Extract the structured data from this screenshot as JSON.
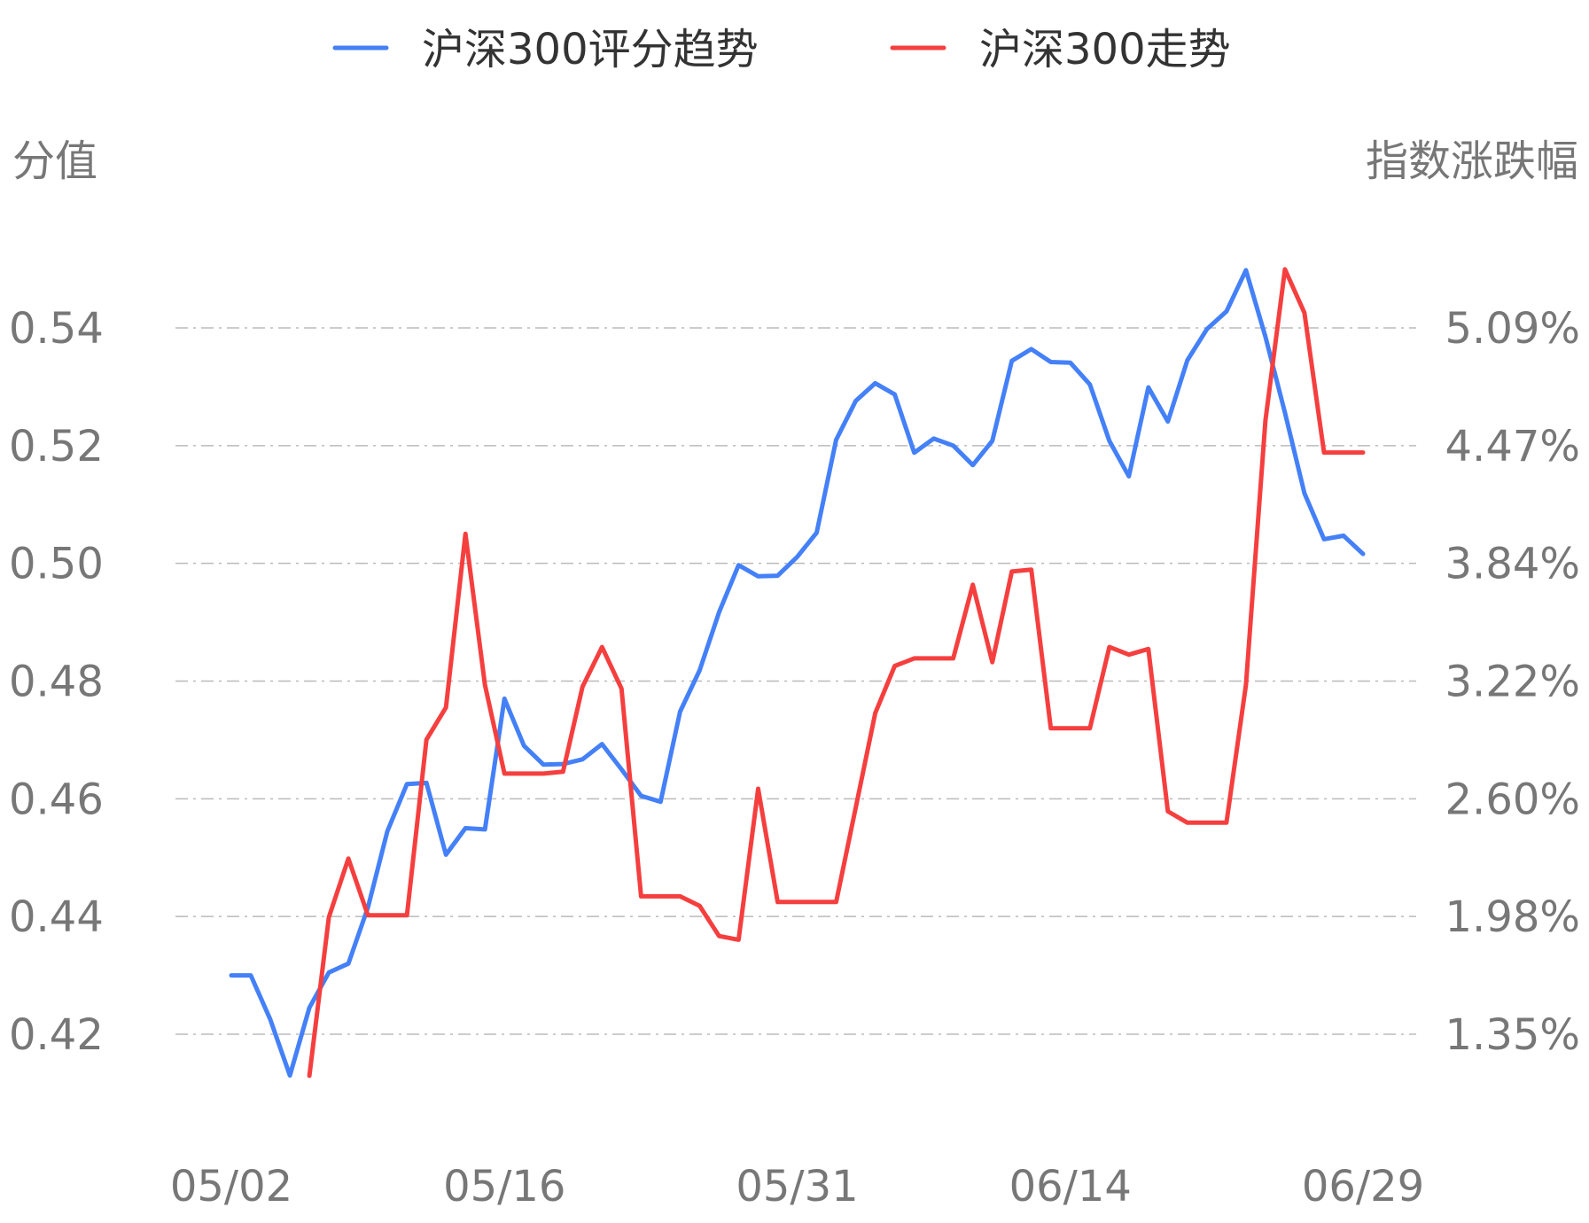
{
  "chart_data": {
    "type": "line",
    "legend_position": "top-center",
    "grid": true,
    "axes": {
      "left_title": "分值",
      "right_title": "指数涨跌幅",
      "left_ticks": [
        "0.54",
        "0.52",
        "0.50",
        "0.48",
        "0.46",
        "0.44",
        "0.42"
      ],
      "right_ticks": [
        "5.09%",
        "4.47%",
        "3.84%",
        "3.22%",
        "2.60%",
        "1.98%",
        "1.35%"
      ],
      "left_ylim": [
        0.42,
        0.54
      ],
      "right_ylim": [
        1.35,
        5.09
      ],
      "x_ticks": [
        {
          "label": "05/02",
          "x": "2023-05-02"
        },
        {
          "label": "05/16",
          "x": "2023-05-16"
        },
        {
          "label": "05/31",
          "x": "2023-05-31"
        },
        {
          "label": "06/14",
          "x": "2023-06-14"
        },
        {
          "label": "06/29",
          "x": "2023-06-29"
        }
      ],
      "xlim": [
        "2023-05-02",
        "2023-06-29"
      ]
    },
    "series": [
      {
        "name": "沪深300评分趋势",
        "color": "#4480f7",
        "axis": "left",
        "points": [
          [
            "2023-05-02",
            0.43
          ],
          [
            "2023-05-03",
            0.43
          ],
          [
            "2023-05-04",
            0.4225
          ],
          [
            "2023-05-05",
            0.413
          ],
          [
            "2023-05-06",
            0.4245
          ],
          [
            "2023-05-07",
            0.4305
          ],
          [
            "2023-05-08",
            0.432
          ],
          [
            "2023-05-09",
            0.4415
          ],
          [
            "2023-05-10",
            0.4545
          ],
          [
            "2023-05-11",
            0.4625
          ],
          [
            "2023-05-12",
            0.4627
          ],
          [
            "2023-05-13",
            0.4505
          ],
          [
            "2023-05-14",
            0.455
          ],
          [
            "2023-05-15",
            0.4548
          ],
          [
            "2023-05-16",
            0.477
          ],
          [
            "2023-05-17",
            0.469
          ],
          [
            "2023-05-18",
            0.4658
          ],
          [
            "2023-05-19",
            0.4659
          ],
          [
            "2023-05-20",
            0.4667
          ],
          [
            "2023-05-21",
            0.4693
          ],
          [
            "2023-05-22",
            0.465
          ],
          [
            "2023-05-23",
            0.4605
          ],
          [
            "2023-05-24",
            0.4595
          ],
          [
            "2023-05-25",
            0.4748
          ],
          [
            "2023-05-26",
            0.4818
          ],
          [
            "2023-05-27",
            0.4917
          ],
          [
            "2023-05-28",
            0.4997
          ],
          [
            "2023-05-29",
            0.4978
          ],
          [
            "2023-05-30",
            0.4979
          ],
          [
            "2023-05-31",
            0.5011
          ],
          [
            "2023-06-01",
            0.5052
          ],
          [
            "2023-06-02",
            0.521
          ],
          [
            "2023-06-03",
            0.5276
          ],
          [
            "2023-06-04",
            0.5306
          ],
          [
            "2023-06-05",
            0.5287
          ],
          [
            "2023-06-06",
            0.5188
          ],
          [
            "2023-06-07",
            0.5212
          ],
          [
            "2023-06-08",
            0.52
          ],
          [
            "2023-06-09",
            0.5167
          ],
          [
            "2023-06-10",
            0.5208
          ],
          [
            "2023-06-11",
            0.5344
          ],
          [
            "2023-06-12",
            0.5364
          ],
          [
            "2023-06-13",
            0.5342
          ],
          [
            "2023-06-14",
            0.5341
          ],
          [
            "2023-06-15",
            0.5304
          ],
          [
            "2023-06-16",
            0.5208
          ],
          [
            "2023-06-17",
            0.5148
          ],
          [
            "2023-06-18",
            0.5299
          ],
          [
            "2023-06-19",
            0.5241
          ],
          [
            "2023-06-20",
            0.5345
          ],
          [
            "2023-06-21",
            0.5398
          ],
          [
            "2023-06-22",
            0.5428
          ],
          [
            "2023-06-23",
            0.5498
          ],
          [
            "2023-06-24",
            0.5385
          ],
          [
            "2023-06-25",
            0.5256
          ],
          [
            "2023-06-26",
            0.5119
          ],
          [
            "2023-06-27",
            0.5041
          ],
          [
            "2023-06-28",
            0.5047
          ],
          [
            "2023-06-29",
            0.5016
          ]
        ]
      },
      {
        "name": "沪深300走势",
        "color": "#f53f3f",
        "axis": "right",
        "points": [
          [
            "2023-05-06",
            1.13
          ],
          [
            "2023-05-07",
            1.97
          ],
          [
            "2023-05-08",
            2.28
          ],
          [
            "2023-05-09",
            1.98
          ],
          [
            "2023-05-10",
            1.98
          ],
          [
            "2023-05-11",
            1.98
          ],
          [
            "2023-05-12",
            2.91
          ],
          [
            "2023-05-13",
            3.08
          ],
          [
            "2023-05-14",
            4.0
          ],
          [
            "2023-05-15",
            3.2
          ],
          [
            "2023-05-16",
            2.73
          ],
          [
            "2023-05-17",
            2.73
          ],
          [
            "2023-05-18",
            2.73
          ],
          [
            "2023-05-19",
            2.74
          ],
          [
            "2023-05-20",
            3.19
          ],
          [
            "2023-05-21",
            3.4
          ],
          [
            "2023-05-22",
            3.18
          ],
          [
            "2023-05-23",
            2.08
          ],
          [
            "2023-05-24",
            2.08
          ],
          [
            "2023-05-25",
            2.08
          ],
          [
            "2023-05-26",
            2.03
          ],
          [
            "2023-05-27",
            1.87
          ],
          [
            "2023-05-28",
            1.85
          ],
          [
            "2023-05-29",
            2.65
          ],
          [
            "2023-05-30",
            2.05
          ],
          [
            "2023-05-31",
            2.05
          ],
          [
            "2023-06-01",
            2.05
          ],
          [
            "2023-06-02",
            2.05
          ],
          [
            "2023-06-03",
            2.55
          ],
          [
            "2023-06-04",
            3.05
          ],
          [
            "2023-06-05",
            3.3
          ],
          [
            "2023-06-06",
            3.34
          ],
          [
            "2023-06-07",
            3.34
          ],
          [
            "2023-06-08",
            3.34
          ],
          [
            "2023-06-09",
            3.73
          ],
          [
            "2023-06-10",
            3.32
          ],
          [
            "2023-06-11",
            3.8
          ],
          [
            "2023-06-12",
            3.81
          ],
          [
            "2023-06-13",
            2.97
          ],
          [
            "2023-06-14",
            2.97
          ],
          [
            "2023-06-15",
            2.97
          ],
          [
            "2023-06-16",
            3.4
          ],
          [
            "2023-06-17",
            3.36
          ],
          [
            "2023-06-18",
            3.39
          ],
          [
            "2023-06-19",
            2.53
          ],
          [
            "2023-06-20",
            2.47
          ],
          [
            "2023-06-21",
            2.47
          ],
          [
            "2023-06-22",
            2.47
          ],
          [
            "2023-06-23",
            3.2
          ],
          [
            "2023-06-24",
            4.6
          ],
          [
            "2023-06-25",
            5.4
          ],
          [
            "2023-06-26",
            5.17
          ],
          [
            "2023-06-27",
            4.43
          ],
          [
            "2023-06-28",
            4.43
          ],
          [
            "2023-06-29",
            4.43
          ]
        ]
      }
    ]
  }
}
